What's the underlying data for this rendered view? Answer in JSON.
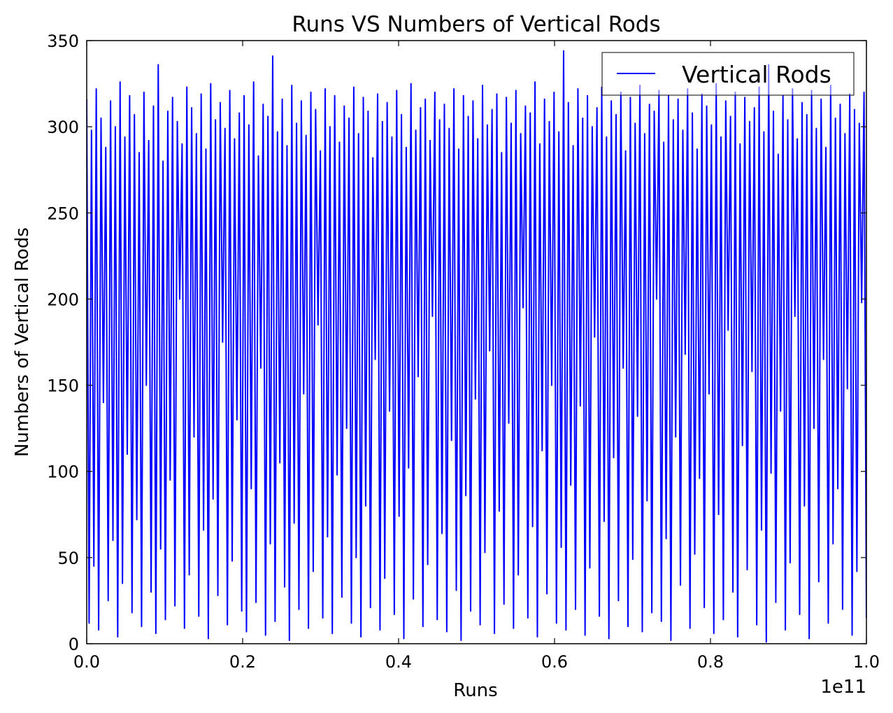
{
  "chart_data": {
    "type": "line",
    "title": "Runs VS Numbers of Vertical Rods",
    "xlabel": "Runs",
    "ylabel": "Numbers of Vertical Rods",
    "x_offset_label": "1e11",
    "xlim": [
      0.0,
      1.0
    ],
    "ylim": [
      0,
      350
    ],
    "x_ticks": [
      "0.0",
      "0.2",
      "0.4",
      "0.6",
      "0.8",
      "1.0"
    ],
    "y_ticks": [
      "0",
      "50",
      "100",
      "150",
      "200",
      "250",
      "300",
      "350"
    ],
    "grid": false,
    "legend_position": "top-right",
    "series": [
      {
        "name": "Vertical Rods",
        "color": "#0000ff",
        "values": [
          316,
          12,
          298,
          45,
          322,
          8,
          305,
          140,
          288,
          25,
          315,
          60,
          300,
          4,
          326,
          35,
          294,
          110,
          318,
          18,
          307,
          72,
          285,
          10,
          320,
          150,
          292,
          30,
          312,
          6,
          336,
          55,
          280,
          14,
          309,
          95,
          317,
          22,
          303,
          200,
          290,
          9,
          323,
          40,
          311,
          120,
          296,
          16,
          319,
          66,
          287,
          3,
          325,
          84,
          304,
          28,
          314,
          175,
          299,
          11,
          321,
          48,
          293,
          130,
          308,
          19,
          318,
          7,
          301,
          90,
          326,
          24,
          283,
          160,
          313,
          5,
          306,
          58,
          341,
          13,
          297,
          105,
          316,
          33,
          289,
          2,
          324,
          70,
          302,
          20,
          315,
          145,
          295,
          9,
          320,
          42,
          310,
          185,
          286,
          15,
          322,
          62,
          300,
          6,
          318,
          98,
          291,
          27,
          312,
          125,
          305,
          12,
          323,
          50,
          296,
          4,
          317,
          80,
          309,
          21,
          282,
          165,
          319,
          8,
          303,
          38,
          314,
          135,
          294,
          17,
          321,
          74,
          307,
          3,
          288,
          102,
          325,
          26,
          298,
          155,
          311,
          10,
          316,
          46,
          292,
          190,
          320,
          14,
          304,
          64,
          313,
          7,
          299,
          118,
          322,
          31,
          287,
          2,
          318,
          86,
          306,
          19,
          315,
          142,
          293,
          11,
          324,
          53,
          301,
          170,
          310,
          6,
          319,
          77,
          285,
          23,
          317,
          128,
          302,
          9,
          321,
          40,
          296,
          195,
          312,
          15,
          308,
          68,
          326,
          4,
          290,
          112,
          316,
          29,
          303,
          150,
          320,
          12,
          297,
          56,
          344,
          8,
          314,
          92,
          289,
          20,
          322,
          138,
          305,
          5,
          318,
          44,
          300,
          178,
          311,
          16,
          323,
          71,
          294,
          3,
          315,
          108,
          307,
          25,
          320,
          160,
          286,
          10,
          317,
          49,
          302,
          132,
          324,
          7,
          296,
          83,
          313,
          18,
          309,
          200,
          321,
          13,
          291,
          61,
          318,
          2,
          304,
          120,
          316,
          34,
          298,
          168,
          322,
          9,
          308,
          52,
          287,
          96,
          319,
          21,
          312,
          145,
          301,
          6,
          325,
          75,
          294,
          14,
          315,
          182,
          306,
          30,
          320,
          4,
          290,
          115,
          317,
          43,
          303,
          158,
          311,
          11,
          323,
          66,
          297,
          1,
          336,
          99,
          309,
          24,
          284,
          135,
          318,
          8,
          304,
          47,
          322,
          190,
          293,
          17,
          314,
          80,
          307,
          3,
          321,
          125,
          299,
          36,
          316,
          165,
          288,
          12,
          324,
          58,
          305,
          90,
          313,
          20,
          296,
          148,
          319,
          5,
          310,
          42,
          302,
          198,
          320,
          15
        ]
      }
    ]
  }
}
